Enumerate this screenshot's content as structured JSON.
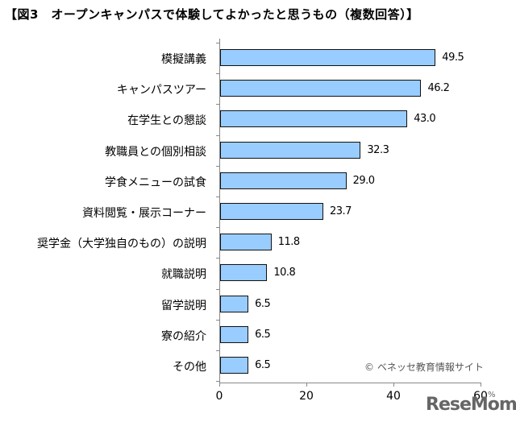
{
  "title": "【図3　オープンキャンパスで体験してよかったと思うもの（複数回答）】",
  "chart_data": {
    "type": "bar",
    "orientation": "horizontal",
    "title": "【図3　オープンキャンパスで体験してよかったと思うもの（複数回答）】",
    "categories": [
      "模擬講義",
      "キャンパスツアー",
      "在学生との懇談",
      "教職員との個別相談",
      "学食メニューの試食",
      "資料閲覧・展示コーナー",
      "奨学金（大学独自のもの）の説明",
      "就職説明",
      "留学説明",
      "寮の紹介",
      "その他"
    ],
    "values": [
      49.5,
      46.2,
      43.0,
      32.3,
      29.0,
      23.7,
      11.8,
      10.8,
      6.5,
      6.5,
      6.5
    ],
    "value_labels": [
      "49.5",
      "46.2",
      "43.0",
      "32.3",
      "29.0",
      "23.7",
      "11.8",
      "10.8",
      "6.5",
      "6.5",
      "6.5"
    ],
    "xlabel": "",
    "ylabel": "",
    "xlim": [
      0,
      60
    ],
    "xticks": [
      "0",
      "20",
      "40",
      "60"
    ],
    "unit": "%",
    "grid": false,
    "bar_color": "#99ccff",
    "source": "© ベネッセ教育情報サイト"
  },
  "watermark": "ReseMom"
}
